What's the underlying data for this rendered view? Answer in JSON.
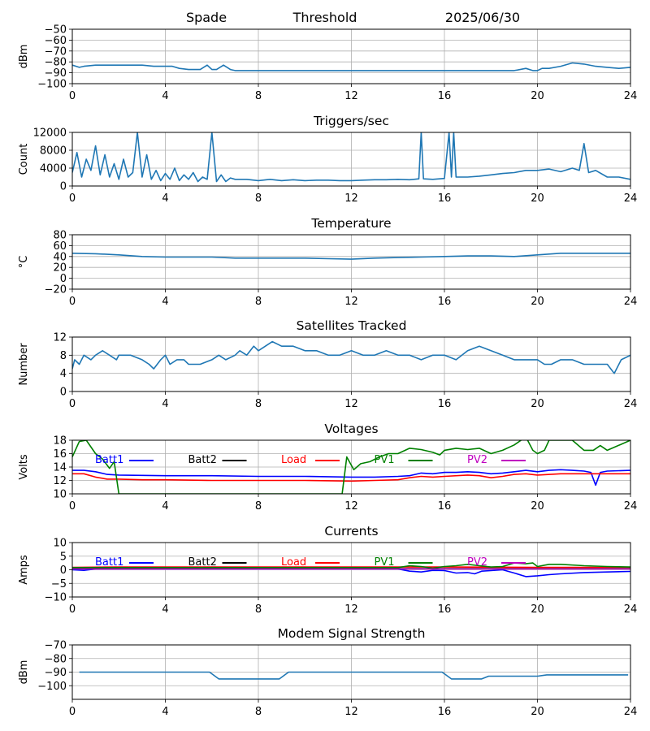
{
  "header": {
    "station": "Spade",
    "mode": "Threshold",
    "date": "2025/06/30"
  },
  "x_axis": {
    "min": 0,
    "max": 24,
    "ticks": [
      "0",
      "4",
      "8",
      "12",
      "16",
      "20",
      "24"
    ]
  },
  "colors": {
    "default": "#1f77b4",
    "batt1": "#0000ff",
    "batt2": "#000000",
    "load": "#ff0000",
    "pv1": "#008000",
    "pv2": "#bf00bf",
    "grid": "#b0b0b0"
  },
  "chart_data": [
    {
      "type": "line",
      "title": "",
      "ylabel": "dBm",
      "ylim": [
        -100,
        -50
      ],
      "yticks": [
        "−50",
        "−60",
        "−70",
        "−80",
        "−90",
        "−100"
      ],
      "series": [
        {
          "x": [
            0,
            0.3,
            0.5,
            1,
            1.5,
            2,
            2.5,
            3,
            3.5,
            4,
            4.3,
            4.6,
            5,
            5.5,
            5.8,
            6,
            6.2,
            6.5,
            6.8,
            7,
            8,
            9,
            10,
            11,
            12,
            13,
            14,
            15,
            16,
            17,
            18,
            19,
            19.5,
            19.8,
            20,
            20.2,
            20.5,
            21,
            21.5,
            22,
            22.5,
            23,
            23.5,
            24
          ],
          "y": [
            -83,
            -85,
            -84,
            -83,
            -83,
            -83,
            -83,
            -83,
            -84,
            -84,
            -84,
            -86,
            -87,
            -87,
            -83,
            -87,
            -87,
            -83,
            -87,
            -88,
            -88,
            -88,
            -88,
            -88,
            -88,
            -88,
            -88,
            -88,
            -88,
            -88,
            -88,
            -88,
            -86,
            -88,
            -88,
            -86,
            -86,
            -84,
            -81,
            -82,
            -84,
            -85,
            -86,
            -85
          ]
        }
      ]
    },
    {
      "type": "line",
      "title": "Triggers/sec",
      "ylabel": "Count",
      "ylim": [
        0,
        12000
      ],
      "yticks": [
        "0",
        "4000",
        "8000",
        "12000"
      ],
      "series": [
        {
          "x": [
            0,
            0.2,
            0.4,
            0.6,
            0.8,
            1,
            1.2,
            1.4,
            1.6,
            1.8,
            2,
            2.2,
            2.4,
            2.6,
            2.8,
            3,
            3.2,
            3.4,
            3.6,
            3.8,
            4,
            4.2,
            4.4,
            4.6,
            4.8,
            5,
            5.2,
            5.4,
            5.6,
            5.8,
            6,
            6.2,
            6.4,
            6.6,
            6.8,
            7,
            7.5,
            8,
            8.5,
            9,
            9.5,
            10,
            10.5,
            11,
            11.5,
            12,
            12.5,
            13,
            13.5,
            14,
            14.5,
            14.9,
            15,
            15.1,
            15.5,
            16,
            16.2,
            16.3,
            16.4,
            16.5,
            17,
            17.5,
            18,
            18.5,
            19,
            19.5,
            20,
            20.5,
            21,
            21.5,
            21.8,
            22,
            22.2,
            22.5,
            23,
            23.5,
            24
          ],
          "y": [
            3000,
            7500,
            2000,
            6000,
            3500,
            9000,
            2500,
            7000,
            2000,
            5000,
            1500,
            6000,
            2000,
            3000,
            12000,
            2000,
            7000,
            1500,
            3500,
            1200,
            2800,
            1500,
            4000,
            1200,
            2500,
            1500,
            3000,
            1000,
            2000,
            1500,
            12000,
            1000,
            2500,
            1000,
            1800,
            1500,
            1500,
            1200,
            1500,
            1200,
            1400,
            1200,
            1300,
            1300,
            1200,
            1200,
            1300,
            1400,
            1400,
            1500,
            1400,
            1600,
            12000,
            1600,
            1500,
            1700,
            12000,
            2000,
            12000,
            2000,
            2000,
            2200,
            2500,
            2800,
            3000,
            3500,
            3500,
            3800,
            3200,
            4000,
            3500,
            9500,
            3000,
            3500,
            2000,
            2000,
            1500
          ]
        }
      ]
    },
    {
      "type": "line",
      "title": "Temperature",
      "ylabel": "°C",
      "ylim": [
        -20,
        80
      ],
      "yticks": [
        "80",
        "60",
        "40",
        "20",
        "0",
        "−20"
      ],
      "series": [
        {
          "x": [
            0,
            1,
            2,
            3,
            4,
            5,
            6,
            7,
            8,
            9,
            10,
            11,
            12,
            13,
            14,
            15,
            16,
            17,
            18,
            19,
            20,
            21,
            22,
            23,
            24
          ],
          "y": [
            46,
            45,
            43,
            40,
            39,
            39,
            39,
            37,
            37,
            37,
            37,
            36,
            35,
            37,
            38,
            39,
            40,
            41,
            41,
            40,
            43,
            46,
            46,
            46,
            46
          ]
        }
      ]
    },
    {
      "type": "line",
      "title": "Satellites Tracked",
      "ylabel": "Number",
      "ylim": [
        0,
        12
      ],
      "yticks": [
        "0",
        "4",
        "8",
        "12"
      ],
      "series": [
        {
          "x": [
            0,
            0.1,
            0.3,
            0.5,
            0.8,
            1,
            1.3,
            1.6,
            1.9,
            2,
            2.5,
            3,
            3.3,
            3.5,
            3.8,
            4,
            4.2,
            4.5,
            4.8,
            5,
            5.5,
            6,
            6.3,
            6.6,
            7,
            7.2,
            7.5,
            7.8,
            8,
            8.3,
            8.6,
            9,
            9.5,
            10,
            10.5,
            11,
            11.5,
            12,
            12.5,
            13,
            13.5,
            14,
            14.5,
            15,
            15.5,
            16,
            16.5,
            17,
            17.5,
            18,
            18.5,
            19,
            19.5,
            20,
            20.3,
            20.6,
            21,
            21.5,
            22,
            22.3,
            22.6,
            23,
            23.3,
            23.6,
            24
          ],
          "y": [
            5,
            7,
            6,
            8,
            7,
            8,
            9,
            8,
            7,
            8,
            8,
            7,
            6,
            5,
            7,
            8,
            6,
            7,
            7,
            6,
            6,
            7,
            8,
            7,
            8,
            9,
            8,
            10,
            9,
            10,
            11,
            10,
            10,
            9,
            9,
            8,
            8,
            9,
            8,
            8,
            9,
            8,
            8,
            7,
            8,
            8,
            7,
            9,
            10,
            9,
            8,
            7,
            7,
            7,
            6,
            6,
            7,
            7,
            6,
            6,
            6,
            6,
            4,
            7,
            8
          ]
        }
      ]
    },
    {
      "type": "line",
      "title": "Voltages",
      "ylabel": "Volts",
      "ylim": [
        10,
        18
      ],
      "yticks": [
        "10",
        "12",
        "14",
        "16",
        "18"
      ],
      "legend_placement": "top",
      "series": [
        {
          "name": "Batt1",
          "x": [
            0,
            0.5,
            1,
            1.5,
            2,
            4,
            6,
            8,
            10,
            12,
            13,
            14,
            14.5,
            15,
            15.5,
            16,
            16.5,
            17,
            17.5,
            18,
            18.5,
            19,
            19.5,
            20,
            20.5,
            21,
            21.5,
            22,
            22.3,
            22.5,
            22.7,
            23,
            24
          ],
          "y": [
            13.5,
            13.5,
            13.3,
            12.9,
            12.8,
            12.7,
            12.7,
            12.6,
            12.6,
            12.5,
            12.5,
            12.6,
            12.7,
            13.1,
            13,
            13.2,
            13.2,
            13.3,
            13.2,
            13.0,
            13.1,
            13.3,
            13.5,
            13.3,
            13.5,
            13.6,
            13.5,
            13.4,
            13.2,
            11.3,
            13.2,
            13.4,
            13.5
          ]
        },
        {
          "name": "Batt2",
          "x": [],
          "y": []
        },
        {
          "name": "Load",
          "x": [
            0,
            0.5,
            1,
            1.5,
            2,
            3,
            4,
            6,
            8,
            10,
            12,
            13,
            14,
            14.5,
            15,
            15.5,
            16,
            17,
            17.5,
            18,
            18.5,
            19,
            19.5,
            20,
            21,
            22,
            23,
            24
          ],
          "y": [
            13.0,
            13.0,
            12.5,
            12.2,
            12.2,
            12.1,
            12.1,
            12.0,
            12.0,
            12.0,
            11.9,
            12.0,
            12.1,
            12.4,
            12.6,
            12.5,
            12.6,
            12.8,
            12.7,
            12.4,
            12.6,
            12.9,
            13.0,
            12.8,
            13.0,
            13.0,
            13.0,
            13.0
          ]
        },
        {
          "name": "PV1",
          "x": [
            0,
            0.3,
            0.6,
            1,
            1.3,
            1.6,
            1.8,
            2,
            11.6,
            11.8,
            12.1,
            12.4,
            12.8,
            13.2,
            13.6,
            14,
            14.5,
            15,
            15.5,
            15.8,
            16,
            16.5,
            17,
            17.5,
            18,
            18.5,
            19,
            19.5,
            19.8,
            20,
            20.3,
            20.5,
            21,
            21.5,
            22,
            22.4,
            22.7,
            23,
            24
          ],
          "y": [
            15.5,
            17.8,
            18,
            16,
            15.2,
            13.8,
            14.8,
            10,
            10,
            15.5,
            13.6,
            14.5,
            14.8,
            15.5,
            16.0,
            16.0,
            16.8,
            16.6,
            16.2,
            15.8,
            16.5,
            16.8,
            16.6,
            16.8,
            16.0,
            16.5,
            17.3,
            18.5,
            16.5,
            16.0,
            16.5,
            18,
            18,
            18,
            16.5,
            16.5,
            17.2,
            16.5,
            18
          ]
        },
        {
          "name": "PV2",
          "x": [],
          "y": []
        }
      ]
    },
    {
      "type": "line",
      "title": "Currents",
      "ylabel": "Amps",
      "ylim": [
        -10,
        10
      ],
      "yticks": [
        "10",
        "5",
        "0",
        "−5",
        "−10"
      ],
      "legend_placement": "top",
      "series": [
        {
          "name": "Batt1",
          "x": [
            0,
            0.5,
            1,
            2,
            4,
            8,
            12,
            14,
            14.5,
            15,
            15.5,
            16,
            16.5,
            17,
            17.3,
            17.6,
            18,
            18.5,
            19,
            19.5,
            20,
            20.5,
            21,
            22,
            23,
            24
          ],
          "y": [
            0,
            -0.2,
            0.3,
            0.3,
            0.3,
            0.3,
            0.3,
            0.3,
            -0.5,
            -0.8,
            -0.2,
            -0.3,
            -1.2,
            -1.0,
            -1.5,
            -0.5,
            -0.3,
            0.0,
            -1.2,
            -2.5,
            -2.2,
            -1.8,
            -1.5,
            -1.0,
            -0.8,
            -0.6
          ]
        },
        {
          "name": "Batt2",
          "x": [
            0,
            2,
            4,
            8,
            12,
            16,
            20,
            24
          ],
          "y": [
            0.4,
            0.4,
            0.4,
            0.4,
            0.4,
            0.4,
            0.4,
            0.4
          ]
        },
        {
          "name": "Load",
          "x": [
            0,
            2,
            4,
            8,
            12,
            16,
            20,
            24
          ],
          "y": [
            0.9,
            1.0,
            1.0,
            1.0,
            1.0,
            1.0,
            0.9,
            0.9
          ]
        },
        {
          "name": "PV1",
          "x": [
            0,
            2,
            4,
            8,
            12,
            14,
            14.5,
            15,
            15.5,
            16,
            16.5,
            17,
            17.5,
            18,
            18.5,
            19,
            19.5,
            19.8,
            20,
            20.5,
            21,
            22,
            23,
            24
          ],
          "y": [
            0.8,
            0.8,
            0.8,
            0.8,
            0.8,
            0.8,
            1.5,
            1.2,
            0.6,
            1.2,
            1.5,
            2.0,
            1.5,
            1.0,
            1.2,
            2.5,
            2.2,
            2.5,
            1.2,
            2.0,
            2.0,
            1.5,
            1.2,
            1.0
          ]
        },
        {
          "name": "PV2",
          "x": [
            0,
            2,
            4,
            8,
            12,
            16,
            20,
            24
          ],
          "y": [
            0.3,
            0.3,
            0.3,
            0.3,
            0.3,
            0.3,
            0.3,
            0.3
          ]
        }
      ]
    },
    {
      "type": "line",
      "title": "Modem Signal Strength",
      "ylabel": "dBm",
      "ylim": [
        -110,
        -70
      ],
      "yticks": [
        "−70",
        "−80",
        "−90",
        "−100"
      ],
      "series": [
        {
          "x": [
            0.3,
            1,
            2,
            3,
            4,
            5,
            5.9,
            6.3,
            7,
            8,
            8.9,
            9.3,
            10,
            11,
            12,
            13,
            14,
            15,
            15.9,
            16.3,
            17,
            17.6,
            17.9,
            19,
            20,
            20.4,
            21,
            22,
            23,
            23.9
          ],
          "y": [
            -90,
            -90,
            -90,
            -90,
            -90,
            -90,
            -90,
            -95,
            -95,
            -95,
            -95,
            -90,
            -90,
            -90,
            -90,
            -90,
            -90,
            -90,
            -90,
            -95,
            -95,
            -95,
            -93,
            -93,
            -93,
            -92,
            -92,
            -92,
            -92,
            -92
          ]
        }
      ]
    }
  ]
}
